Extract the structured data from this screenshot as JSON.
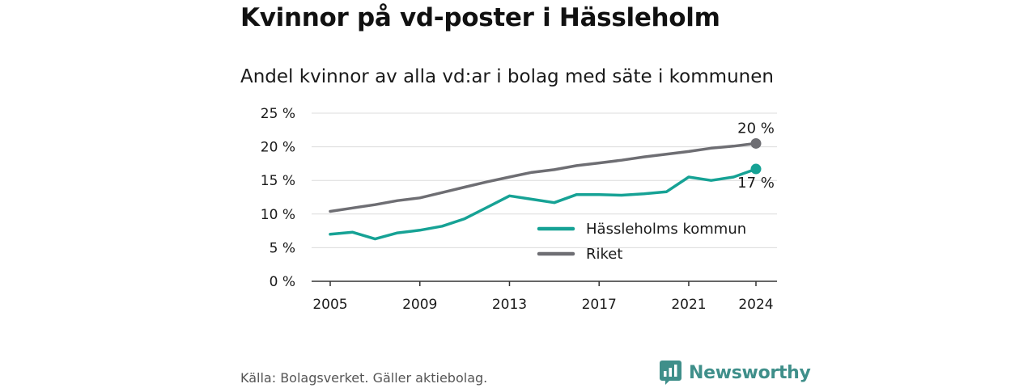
{
  "title": "Kvinnor på vd-poster i Hässleholm",
  "subtitle": "Andel kvinnor av alla vd:ar i bolag med säte i kommunen",
  "source": "Källa: Bolagsverket. Gäller aktiebolag.",
  "brand": {
    "name": "Newsworthy",
    "icon": "newsworthy-logo-icon",
    "color": "#3f8f8a"
  },
  "chart_data": {
    "type": "line",
    "title": "Kvinnor på vd-poster i Hässleholm",
    "subtitle": "Andel kvinnor av alla vd:ar i bolag med säte i kommunen",
    "x": [
      2005,
      2006,
      2007,
      2008,
      2009,
      2010,
      2011,
      2012,
      2013,
      2014,
      2015,
      2016,
      2017,
      2018,
      2019,
      2020,
      2021,
      2022,
      2023,
      2024
    ],
    "x_ticks": [
      "2005",
      "2009",
      "2013",
      "2017",
      "2021",
      "2024"
    ],
    "y_ticks": [
      "0 %",
      "5 %",
      "10 %",
      "15 %",
      "20 %",
      "25 %"
    ],
    "ylim": [
      0,
      25
    ],
    "grid": true,
    "legend_position": "lower-right",
    "series": [
      {
        "name": "Hässleholms kommun",
        "color": "#16a295",
        "values": [
          7.0,
          7.3,
          6.3,
          7.2,
          7.6,
          8.2,
          9.3,
          11.0,
          12.7,
          12.2,
          11.7,
          12.9,
          12.9,
          12.8,
          13.0,
          13.3,
          15.5,
          15.0,
          15.5,
          16.7
        ],
        "end_label": "17 %"
      },
      {
        "name": "Riket",
        "color": "#6e6e73",
        "values": [
          10.4,
          10.9,
          11.4,
          12.0,
          12.4,
          13.2,
          14.0,
          14.8,
          15.5,
          16.2,
          16.6,
          17.2,
          17.6,
          18.0,
          18.5,
          18.9,
          19.3,
          19.8,
          20.1,
          20.5
        ],
        "end_label": "20 %"
      }
    ]
  }
}
